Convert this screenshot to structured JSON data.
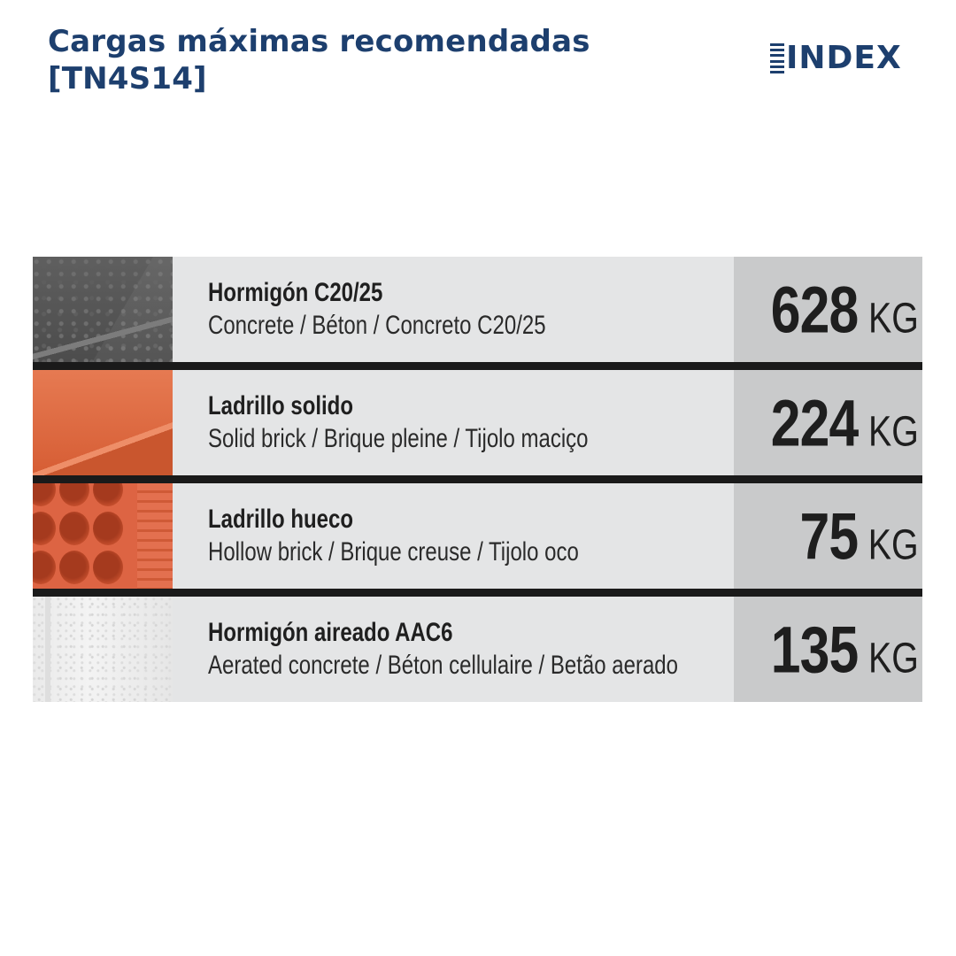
{
  "header": {
    "title_line1": "Cargas máximas recomendadas",
    "title_line2": "[TN4S14]",
    "logo_text": "INDEX"
  },
  "colors": {
    "brand": "#1d3f6e",
    "row_background": "#e4e5e6",
    "value_background": "#c9cacb",
    "separator": "#1a1a1a"
  },
  "rows": [
    {
      "material_swatch": "concrete-texture",
      "name": "Hormigón  C20/25",
      "subtitle": "Concrete / Béton / Concreto C20/25",
      "value": "628",
      "unit": "KG"
    },
    {
      "material_swatch": "solid-brick-texture",
      "name": "Ladrillo solido",
      "subtitle": "Solid brick / Brique pleine / Tijolo maciço",
      "value": "224",
      "unit": "KG"
    },
    {
      "material_swatch": "hollow-brick-texture",
      "name": "Ladrillo hueco",
      "subtitle": "Hollow brick / Brique creuse / Tijolo oco",
      "value": "75",
      "unit": "KG"
    },
    {
      "material_swatch": "aerated-concrete-texture",
      "name": "Hormigón aireado AAC6",
      "subtitle": "Aerated concrete / Béton cellulaire / Betão aerado",
      "value": "135",
      "unit": "KG"
    }
  ]
}
